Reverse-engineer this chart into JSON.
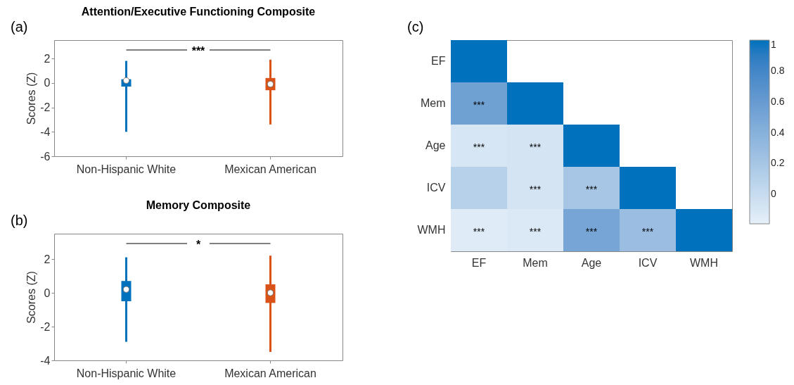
{
  "chart_data": [
    {
      "type": "box",
      "title": "Attention/Executive Functioning Composite",
      "ylabel": "Scores (Z)",
      "categories": [
        "Non-Hispanic White",
        "Mexican American"
      ],
      "colors": [
        "#0072bd",
        "#d95319"
      ],
      "boxes": [
        {
          "low": -4.0,
          "q1": -0.3,
          "median": 0.2,
          "q3": 0.3,
          "high": 1.8
        },
        {
          "low": -3.4,
          "q1": -0.6,
          "median": -0.1,
          "q3": 0.4,
          "high": 1.9
        }
      ],
      "ylim": [
        -6,
        3.5
      ],
      "yticks": [
        -6,
        -4,
        -2,
        0,
        2
      ],
      "annotations": [
        "(a)",
        "***"
      ]
    },
    {
      "type": "box",
      "title": "Memory Composite",
      "ylabel": "Scores (Z)",
      "categories": [
        "Non-Hispanic White",
        "Mexican American"
      ],
      "colors": [
        "#0072bd",
        "#d95319"
      ],
      "boxes": [
        {
          "low": -2.9,
          "q1": -0.5,
          "median": 0.2,
          "q3": 0.7,
          "high": 2.1
        },
        {
          "low": -3.5,
          "q1": -0.6,
          "median": 0,
          "q3": 0.5,
          "high": 2.2
        }
      ],
      "ylim": [
        -4,
        3.5
      ],
      "yticks": [
        -4,
        -2,
        0,
        2
      ],
      "annotations": [
        "(b)",
        "*"
      ]
    },
    {
      "type": "heatmap",
      "categories": [
        "EF",
        "Mem",
        "Age",
        "ICV",
        "WMH"
      ],
      "y_categories": [
        "EF",
        "Mem",
        "Age",
        "ICV",
        "WMH"
      ],
      "cells": [
        [
          1,
          null,
          null,
          null,
          null
        ],
        [
          0.55,
          1,
          null,
          null,
          null
        ],
        [
          -0.1,
          -0.08,
          1,
          null,
          null
        ],
        [
          0.1,
          -0.08,
          0.2,
          1,
          null
        ],
        [
          -0.15,
          -0.12,
          0.5,
          0.28,
          1
        ]
      ],
      "cell_labels": [
        [
          null,
          null,
          null,
          null,
          null
        ],
        [
          "***",
          null,
          null,
          null,
          null
        ],
        [
          "***",
          "***",
          null,
          null,
          null
        ],
        [
          null,
          "***",
          "***",
          null,
          null
        ],
        [
          "***",
          "***",
          "***",
          "***",
          null
        ]
      ],
      "clim": [
        -0.19,
        1
      ],
      "cticks": [
        0,
        0.2,
        0.4,
        0.6,
        0.8,
        1
      ],
      "annotations": [
        "(c)"
      ]
    }
  ]
}
